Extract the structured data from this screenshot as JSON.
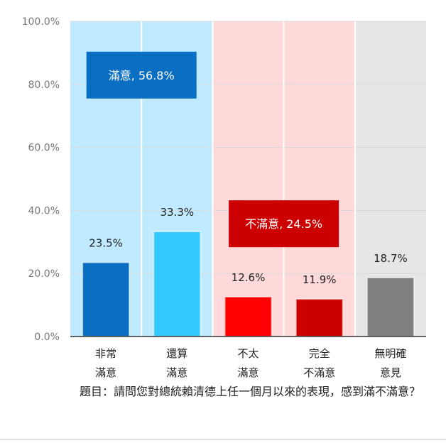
{
  "chart_data": {
    "type": "bar",
    "categories": [
      [
        "非常",
        "滿意"
      ],
      [
        "還算",
        "滿意"
      ],
      [
        "不太",
        "滿意"
      ],
      [
        "完全",
        "不滿意"
      ],
      [
        "無明確",
        "意見"
      ]
    ],
    "values": [
      23.5,
      33.3,
      12.6,
      11.9,
      18.7
    ],
    "value_labels": [
      "23.5%",
      "33.3%",
      "12.6%",
      "11.9%",
      "18.7%"
    ],
    "bar_colors": [
      "#0a6fc2",
      "#33c9ff",
      "#ff0000",
      "#cc0000",
      "#808080"
    ],
    "ylim": [
      0,
      100
    ],
    "y_ticks": [
      0,
      20,
      40,
      60,
      80,
      100
    ],
    "y_tick_labels": [
      "0.0%",
      "20.0%",
      "40.0%",
      "60.0%",
      "80.0%",
      "100.0%"
    ],
    "groups": [
      {
        "label": "滿意, 56.8%",
        "value": 56.8,
        "categories": [
          0,
          1
        ],
        "bg": "#bfeaff",
        "box": "#0a6fc2"
      },
      {
        "label": "不滿意, 24.5%",
        "value": 24.5,
        "categories": [
          2,
          3
        ],
        "bg": "#ffd9d9",
        "box": "#cc0000"
      },
      {
        "label": "",
        "categories": [
          4
        ],
        "bg": "#e6e6e6"
      }
    ],
    "grid": true,
    "legend": "none"
  },
  "question": "題目：請問您對總統賴清德上任一個月以來的表現，感到滿不滿意？"
}
